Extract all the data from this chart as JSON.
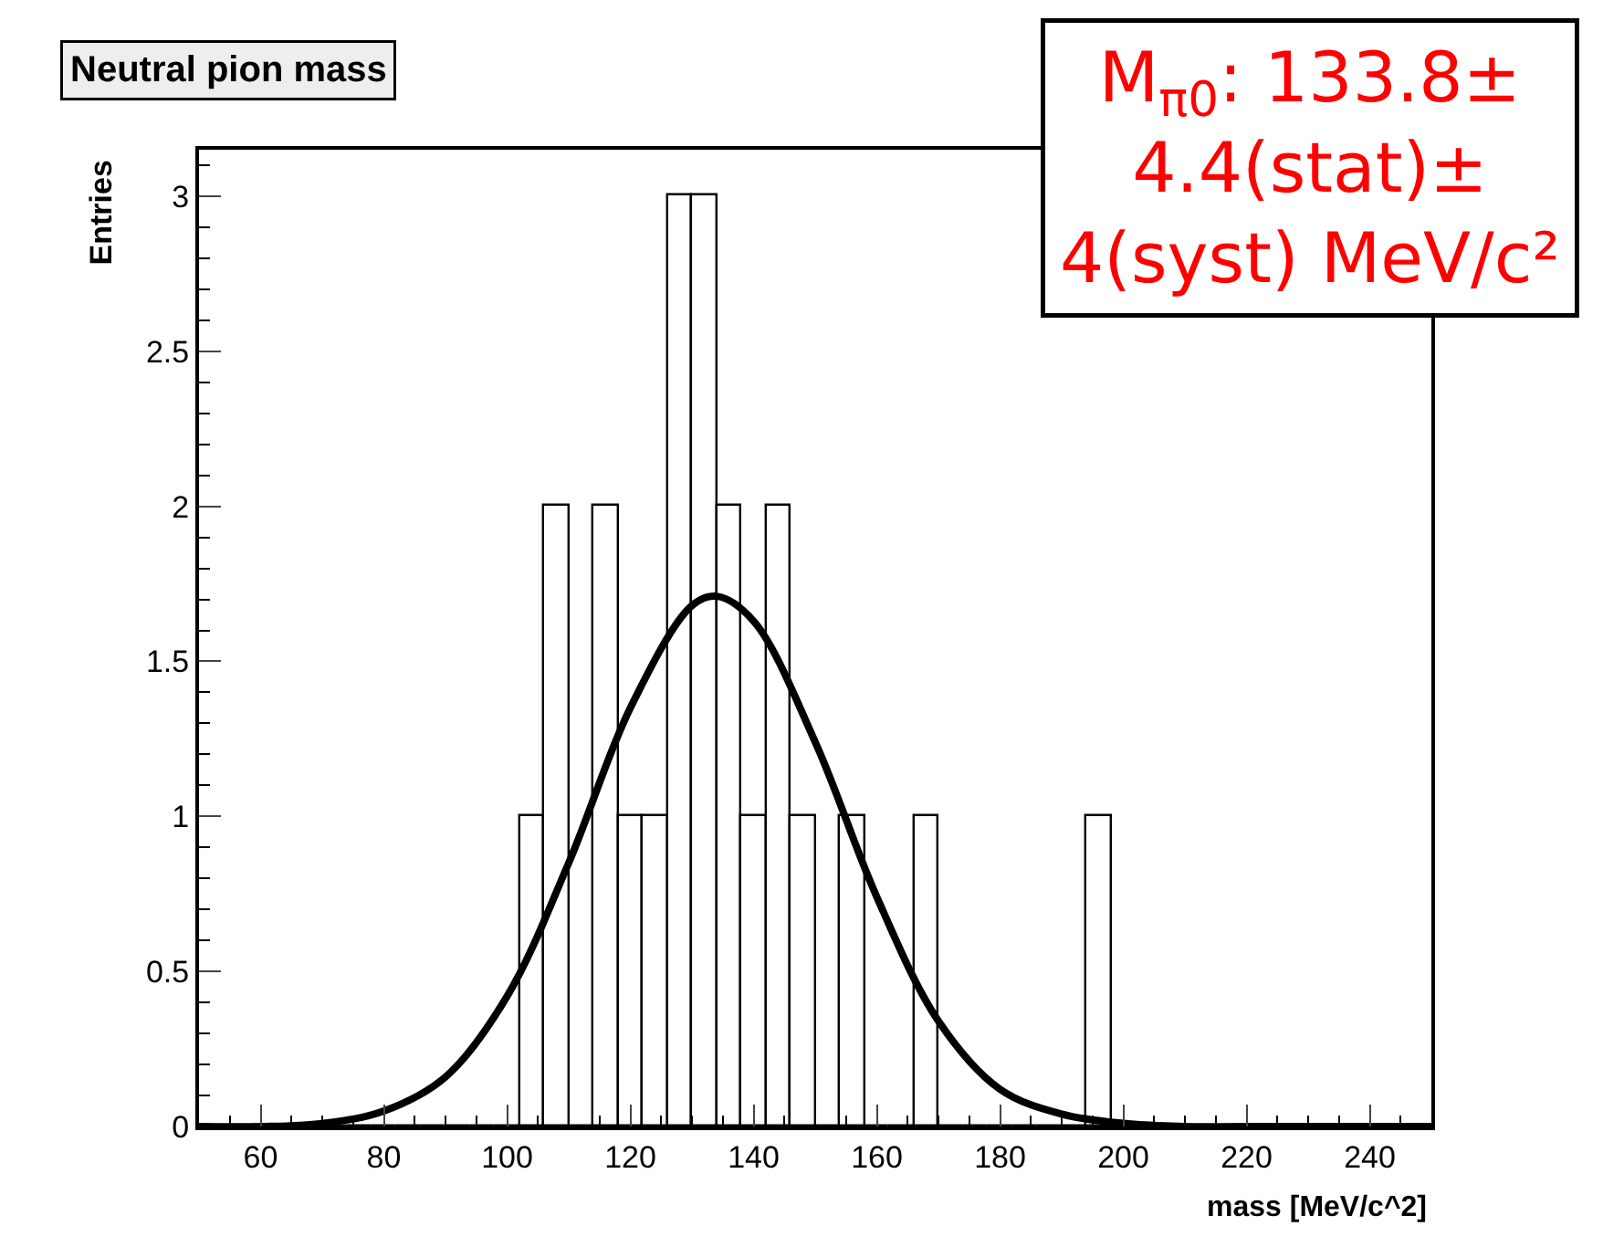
{
  "chart_data": {
    "type": "histogram",
    "title": "Neutral pion mass",
    "xlabel": "mass [MeV/c^2]",
    "ylabel": "Entries",
    "annotations": [
      "M$_{π0}$: 133.8±\n4.4(stat)±\n4(syst) MeV/c²"
    ],
    "series": [
      {
        "color": "#000000",
        "bins": [
          50,
          54,
          58,
          62,
          66,
          70,
          74,
          78,
          82,
          86,
          90,
          94,
          98,
          102,
          106,
          110,
          114,
          118,
          122,
          126,
          130,
          134,
          138,
          142,
          146,
          150,
          154,
          158,
          162,
          166,
          170,
          174,
          178,
          182,
          186,
          190,
          194,
          198,
          202,
          206,
          210,
          214,
          218,
          222,
          226,
          230,
          234,
          238,
          242,
          246,
          250
        ],
        "values": [
          0,
          0,
          0,
          0,
          0,
          0,
          0,
          0,
          0,
          0,
          0,
          0,
          0,
          1,
          2,
          0,
          2,
          1,
          1,
          3,
          3,
          2,
          1,
          2,
          1,
          0,
          1,
          0,
          0,
          1,
          0,
          0,
          0,
          0,
          0,
          0,
          1,
          0,
          0,
          0,
          0,
          0,
          0,
          0,
          0,
          0,
          0,
          0,
          0,
          0
        ]
      },
      {
        "type": "line",
        "color": "#000000",
        "x": [
          50,
          60,
          70,
          80,
          90,
          100,
          110,
          120,
          130,
          134,
          140,
          150,
          160,
          170,
          180,
          190,
          200,
          210,
          220,
          250
        ],
        "values": [
          0,
          0,
          0.01,
          0.05,
          0.16,
          0.42,
          0.85,
          1.35,
          1.68,
          1.71,
          1.63,
          1.24,
          0.74,
          0.34,
          0.12,
          0.04,
          0.01,
          0,
          0,
          0
        ]
      }
    ],
    "xlim": [
      50,
      250
    ],
    "ylim": [
      0,
      3.15
    ],
    "xticks": [
      60,
      80,
      100,
      120,
      140,
      160,
      180,
      200,
      220,
      240
    ],
    "yticks": [
      0,
      0.5,
      1,
      1.5,
      2,
      2.5,
      3
    ]
  }
}
